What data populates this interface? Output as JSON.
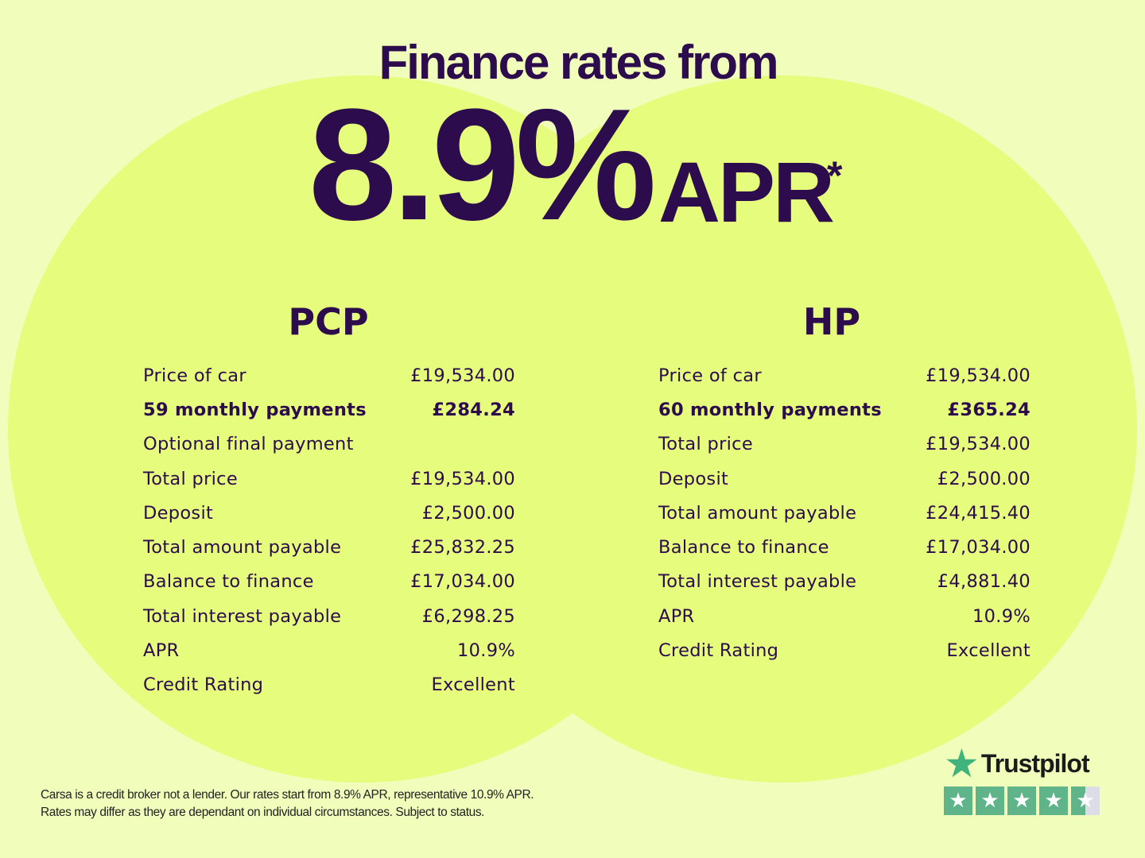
{
  "headline": {
    "title": "Finance rates from",
    "rate": "8.9%",
    "unit": "APR",
    "asterisk": "*"
  },
  "colors": {
    "text": "#2c0c4c",
    "background": "#f1fdbb",
    "circle": "#e5fc7c",
    "trustpilot_green": "#5fb48a"
  },
  "pcp": {
    "title": "PCP",
    "rows": [
      {
        "label": "Price of car",
        "value": "£19,534.00"
      },
      {
        "label": "59 monthly payments",
        "value": "£284.24",
        "bold": true
      },
      {
        "label": "Optional final payment",
        "value": ""
      },
      {
        "label": "Total price",
        "value": "£19,534.00"
      },
      {
        "label": "Deposit",
        "value": "£2,500.00"
      },
      {
        "label": "Total amount payable",
        "value": "£25,832.25"
      },
      {
        "label": "Balance to finance",
        "value": "£17,034.00"
      },
      {
        "label": "Total interest payable",
        "value": "£6,298.25"
      },
      {
        "label": "APR",
        "value": "10.9%"
      },
      {
        "label": "Credit Rating",
        "value": "Excellent"
      }
    ]
  },
  "hp": {
    "title": "HP",
    "rows": [
      {
        "label": "Price of car",
        "value": "£19,534.00"
      },
      {
        "label": "60 monthly payments",
        "value": "£365.24",
        "bold": true
      },
      {
        "label": "Total price",
        "value": "£19,534.00"
      },
      {
        "label": "Deposit",
        "value": "£2,500.00"
      },
      {
        "label": "Total amount payable",
        "value": "£24,415.40"
      },
      {
        "label": "Balance to finance",
        "value": "£17,034.00"
      },
      {
        "label": "Total interest payable",
        "value": "£4,881.40"
      },
      {
        "label": "APR",
        "value": "10.9%"
      },
      {
        "label": "Credit Rating",
        "value": "Excellent"
      }
    ]
  },
  "disclaimer": {
    "line1": "Carsa is a credit broker not a lender. Our rates start from 8.9% APR, representative 10.9% APR.",
    "line2": "Rates may differ as they are dependant on individual circumstances. Subject to status."
  },
  "trustpilot": {
    "name": "Trustpilot",
    "icon": "star-icon",
    "rating": 4.5,
    "max_rating": 5
  }
}
